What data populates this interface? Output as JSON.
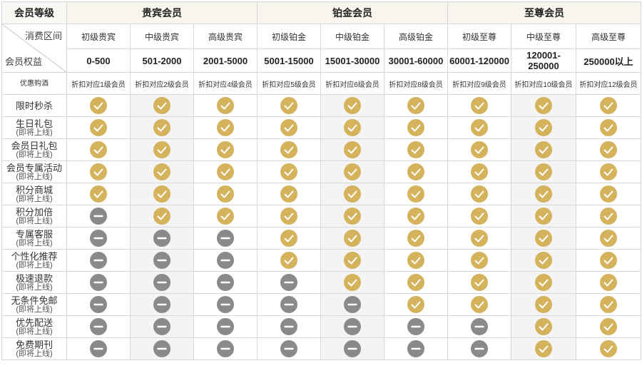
{
  "header": {
    "corner": "会员等级",
    "corner_top": "消费区间",
    "corner_bottom": "会员权益",
    "tiers": [
      "贵宾会员",
      "铂金会员",
      "至尊会员"
    ]
  },
  "levels": [
    "初级贵宾",
    "中级贵宾",
    "高级贵宾",
    "初级铂金",
    "中级铂金",
    "高级铂金",
    "初级至尊",
    "中级至尊",
    "高级至尊"
  ],
  "ranges": [
    "0-500",
    "501-2000",
    "2001-5000",
    "5001-15000",
    "15001-30000",
    "30001-60000",
    "60001-120000",
    "120001-250000",
    "250000以上"
  ],
  "discount": {
    "label": "优惠购酒",
    "values": [
      "折扣对应1级会员",
      "折扣对应2级会员",
      "折扣对应4级会员",
      "折扣对应5级会员",
      "折扣对应6级会员",
      "折扣对应8级会员",
      "折扣对应9级会员",
      "折扣对应10级会员",
      "折扣对应12级会员"
    ]
  },
  "coming_soon": "(即将上线)",
  "benefits": [
    {
      "label": "限时秒杀",
      "coming": false,
      "avail": [
        1,
        1,
        1,
        1,
        1,
        1,
        1,
        1,
        1
      ]
    },
    {
      "label": "生日礼包",
      "coming": true,
      "avail": [
        1,
        1,
        1,
        1,
        1,
        1,
        1,
        1,
        1
      ]
    },
    {
      "label": "会员日礼包",
      "coming": true,
      "avail": [
        1,
        1,
        1,
        1,
        1,
        1,
        1,
        1,
        1
      ]
    },
    {
      "label": "会员专属活动",
      "coming": true,
      "avail": [
        1,
        1,
        1,
        1,
        1,
        1,
        1,
        1,
        1
      ]
    },
    {
      "label": "积分商城",
      "coming": true,
      "avail": [
        1,
        1,
        1,
        1,
        1,
        1,
        1,
        1,
        1
      ]
    },
    {
      "label": "积分加倍",
      "coming": true,
      "avail": [
        0,
        1,
        1,
        1,
        1,
        1,
        1,
        1,
        1
      ]
    },
    {
      "label": "专属客服",
      "coming": true,
      "avail": [
        0,
        0,
        0,
        1,
        1,
        1,
        1,
        1,
        1
      ]
    },
    {
      "label": "个性化推荐",
      "coming": true,
      "avail": [
        0,
        0,
        0,
        1,
        1,
        1,
        1,
        1,
        1
      ]
    },
    {
      "label": "极速退款",
      "coming": true,
      "avail": [
        0,
        0,
        0,
        0,
        1,
        1,
        1,
        1,
        1
      ]
    },
    {
      "label": "无条件免邮",
      "coming": true,
      "avail": [
        0,
        0,
        0,
        0,
        0,
        1,
        1,
        1,
        1
      ]
    },
    {
      "label": "优先配送",
      "coming": true,
      "avail": [
        0,
        0,
        0,
        0,
        0,
        0,
        0,
        1,
        1
      ]
    },
    {
      "label": "免费期刊",
      "coming": true,
      "avail": [
        0,
        0,
        0,
        0,
        0,
        0,
        0,
        1,
        1
      ]
    }
  ],
  "colors": {
    "available": "#d4b35c",
    "unavailable": "#8a8a8a",
    "header_bg": "#f8f5ee"
  },
  "icons": {
    "available": "check-circle-icon",
    "unavailable": "minus-circle-icon"
  }
}
